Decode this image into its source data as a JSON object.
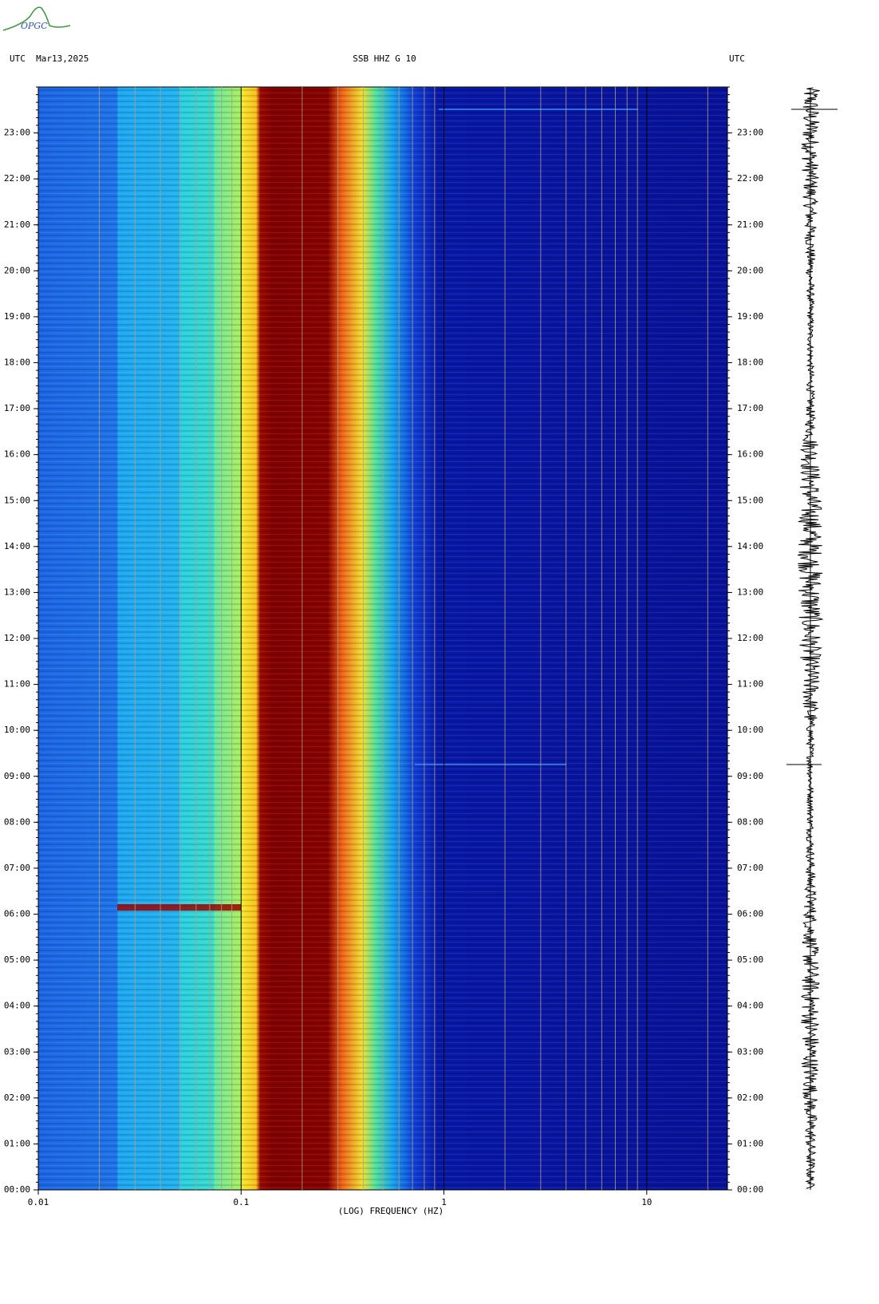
{
  "chart_data": {
    "type": "spectrogram",
    "logo": "OPGC",
    "header_left": "UTC  Mar13,2025",
    "title": "SSB HHZ G 10",
    "header_right": "UTC",
    "xlabel": "(LOG) FREQUENCY (HZ)",
    "xscale": "log",
    "xlim": [
      0.01,
      25
    ],
    "xticks": [
      0.01,
      0.1,
      1,
      10
    ],
    "xminorticks": [
      0.02,
      0.03,
      0.04,
      0.05,
      0.06,
      0.07,
      0.08,
      0.09,
      0.2,
      0.3,
      0.4,
      0.5,
      0.6,
      0.7,
      0.8,
      0.9,
      2,
      3,
      4,
      5,
      6,
      7,
      8,
      9,
      20
    ],
    "ylim": [
      0,
      24
    ],
    "yticks": [
      {
        "value": 0,
        "label": "00:00"
      },
      {
        "value": 1,
        "label": "01:00"
      },
      {
        "value": 2,
        "label": "02:00"
      },
      {
        "value": 3,
        "label": "03:00"
      },
      {
        "value": 4,
        "label": "04:00"
      },
      {
        "value": 5,
        "label": "05:00"
      },
      {
        "value": 6,
        "label": "06:00"
      },
      {
        "value": 7,
        "label": "07:00"
      },
      {
        "value": 8,
        "label": "08:00"
      },
      {
        "value": 9,
        "label": "09:00"
      },
      {
        "value": 10,
        "label": "10:00"
      },
      {
        "value": 11,
        "label": "11:00"
      },
      {
        "value": 12,
        "label": "12:00"
      },
      {
        "value": 13,
        "label": "13:00"
      },
      {
        "value": 14,
        "label": "14:00"
      },
      {
        "value": 15,
        "label": "15:00"
      },
      {
        "value": 16,
        "label": "16:00"
      },
      {
        "value": 17,
        "label": "17:00"
      },
      {
        "value": 18,
        "label": "18:00"
      },
      {
        "value": 19,
        "label": "19:00"
      },
      {
        "value": 20,
        "label": "20:00"
      },
      {
        "value": 21,
        "label": "21:00"
      },
      {
        "value": 22,
        "label": "22:00"
      },
      {
        "value": 23,
        "label": "23:00"
      }
    ],
    "grid": true
  }
}
